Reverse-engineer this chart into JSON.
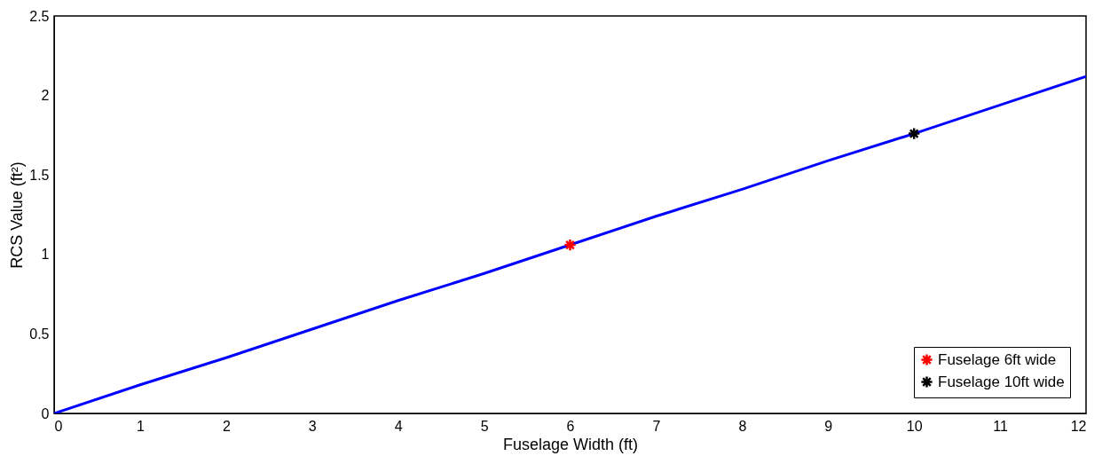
{
  "chart_data": {
    "type": "line",
    "xlabel": "Fuselage Width (ft)",
    "ylabel": "RCS Value (ft²)",
    "xlim": [
      0,
      12
    ],
    "xticks": [
      0,
      1,
      2,
      3,
      4,
      5,
      6,
      7,
      8,
      9,
      10,
      11,
      12
    ],
    "ylim": [
      0,
      2.5
    ],
    "yticks": [
      0,
      0.5,
      1,
      1.5,
      2,
      2.5
    ],
    "legend": "bottom right",
    "grid": false,
    "series": [
      {
        "color": "#0000ff",
        "x": [
          0,
          1,
          2,
          3,
          4,
          5,
          6,
          7,
          8,
          9,
          10,
          11,
          12
        ],
        "values": [
          0,
          0.18,
          0.35,
          0.53,
          0.71,
          0.88,
          1.06,
          1.24,
          1.41,
          1.59,
          1.76,
          1.94,
          2.12
        ]
      },
      {
        "type": "scatter",
        "name": "Fuselage 6ft wide",
        "color": "#ff0000",
        "marker": "cross",
        "x": [
          6
        ],
        "values": [
          1.06
        ]
      },
      {
        "type": "scatter",
        "name": "Fuselage 10ft wide",
        "color": "#000000",
        "marker": "cross",
        "x": [
          10
        ],
        "values": [
          1.76
        ]
      }
    ]
  }
}
